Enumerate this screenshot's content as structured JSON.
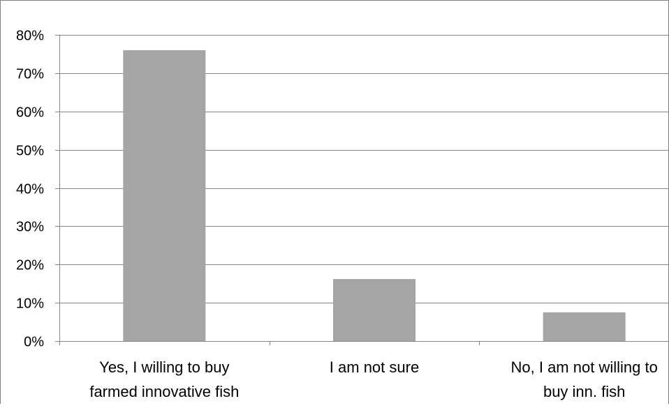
{
  "chart_data": {
    "type": "bar",
    "title": "",
    "xlabel": "",
    "ylabel": "",
    "categories": [
      [
        "Yes, I willing to buy",
        "farmed innovative fish"
      ],
      [
        "I am not sure"
      ],
      [
        "No, I am not willing to",
        "buy inn. fish"
      ]
    ],
    "values": [
      76,
      16.2,
      7.5
    ],
    "value_format": "percent",
    "ylim": [
      0,
      80
    ],
    "yticks": [
      0,
      10,
      20,
      30,
      40,
      50,
      60,
      70,
      80
    ],
    "ytick_labels": [
      "0%",
      "10%",
      "20%",
      "30%",
      "40%",
      "50%",
      "60%",
      "70%",
      "80%"
    ],
    "grid": true,
    "legend": "none",
    "bar_color": "#a5a5a5",
    "gridline_color": "#868686"
  }
}
